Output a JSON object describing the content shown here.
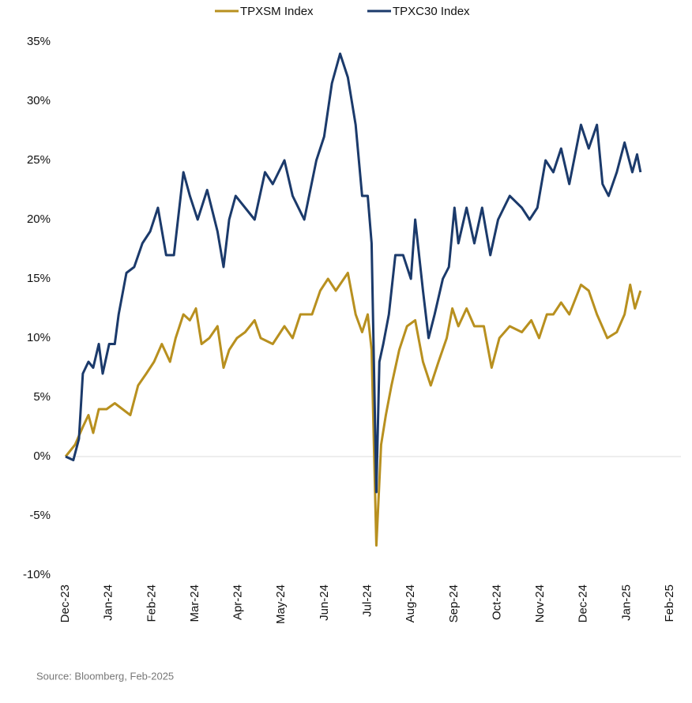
{
  "chart_data": {
    "type": "line",
    "source": "Source: Bloomberg, Feb-2025",
    "xlim": [
      0,
      14
    ],
    "xticks": [
      {
        "value": 0,
        "label": "Dec-23"
      },
      {
        "value": 1,
        "label": "Jan-24"
      },
      {
        "value": 2,
        "label": "Feb-24"
      },
      {
        "value": 3,
        "label": "Mar-24"
      },
      {
        "value": 4,
        "label": "Apr-24"
      },
      {
        "value": 5,
        "label": "May-24"
      },
      {
        "value": 6,
        "label": "Jun-24"
      },
      {
        "value": 7,
        "label": "Jul-24"
      },
      {
        "value": 8,
        "label": "Aug-24"
      },
      {
        "value": 9,
        "label": "Sep-24"
      },
      {
        "value": 10,
        "label": "Oct-24"
      },
      {
        "value": 11,
        "label": "Nov-24"
      },
      {
        "value": 12,
        "label": "Dec-24"
      },
      {
        "value": 13,
        "label": "Jan-25"
      },
      {
        "value": 14,
        "label": "Feb-25"
      }
    ],
    "ylim": [
      -10,
      35
    ],
    "yticks": [
      {
        "value": 35,
        "label": "35%"
      },
      {
        "value": 30,
        "label": "30%"
      },
      {
        "value": 25,
        "label": "25%"
      },
      {
        "value": 20,
        "label": "20%"
      },
      {
        "value": 15,
        "label": "15%"
      },
      {
        "value": 10,
        "label": "10%"
      },
      {
        "value": 5,
        "label": "5%"
      },
      {
        "value": 0,
        "label": "0%"
      },
      {
        "value": -5,
        "label": "-5%"
      },
      {
        "value": -10,
        "label": "-10%"
      }
    ],
    "legend": "top",
    "series": [
      {
        "name": "TPXSM Index",
        "color": "#b8901f",
        "x": [
          0,
          0.22,
          0.4,
          0.53,
          0.64,
          0.77,
          0.95,
          1.14,
          1.32,
          1.5,
          1.68,
          1.87,
          2.05,
          2.23,
          2.42,
          2.55,
          2.73,
          2.88,
          3.02,
          3.15,
          3.33,
          3.52,
          3.66,
          3.79,
          3.97,
          4.16,
          4.38,
          4.52,
          4.8,
          5.07,
          5.26,
          5.44,
          5.71,
          5.9,
          6.08,
          6.26,
          6.54,
          6.72,
          6.87,
          7.0,
          7.09,
          7.2,
          7.31,
          7.42,
          7.55,
          7.73,
          7.91,
          8.1,
          8.28,
          8.46,
          8.64,
          8.83,
          8.96,
          9.1,
          9.29,
          9.47,
          9.69,
          9.87,
          10.05,
          10.29,
          10.57,
          10.79,
          10.97,
          11.15,
          11.3,
          11.48,
          11.67,
          11.94,
          12.12,
          12.31,
          12.55,
          12.77,
          12.95,
          13.08,
          13.19,
          13.32
        ],
        "values": [
          0,
          1,
          2.5,
          3.5,
          2,
          4,
          4,
          4.5,
          4,
          3.5,
          6,
          7,
          8,
          9.5,
          8,
          10,
          12,
          11.5,
          12.5,
          9.5,
          10,
          11,
          7.5,
          9,
          10,
          10.5,
          11.5,
          10,
          9.5,
          11,
          10,
          12,
          12,
          14,
          15,
          14,
          15.5,
          12,
          10.5,
          12,
          9,
          -7.5,
          1,
          3.5,
          6,
          9,
          11,
          11.5,
          8,
          6,
          8,
          10,
          12.5,
          11,
          12.5,
          11,
          11,
          7.5,
          10,
          11,
          10.5,
          11.5,
          10,
          12,
          12,
          13,
          12,
          14.5,
          14,
          12,
          10,
          10.5,
          12,
          14.5,
          12.5,
          14
        ]
      },
      {
        "name": "TPXC30 Index",
        "color": "#1b3a6b",
        "x": [
          0,
          0.18,
          0.31,
          0.4,
          0.53,
          0.64,
          0.77,
          0.86,
          1.01,
          1.14,
          1.23,
          1.41,
          1.59,
          1.78,
          1.96,
          2.14,
          2.33,
          2.51,
          2.73,
          2.88,
          3.06,
          3.28,
          3.52,
          3.66,
          3.79,
          3.94,
          4.16,
          4.38,
          4.62,
          4.8,
          5.07,
          5.26,
          5.53,
          5.81,
          5.99,
          6.17,
          6.36,
          6.54,
          6.72,
          6.87,
          7.0,
          7.09,
          7.2,
          7.27,
          7.36,
          7.49,
          7.64,
          7.82,
          8.0,
          8.1,
          8.28,
          8.41,
          8.55,
          8.74,
          8.88,
          9.01,
          9.1,
          9.29,
          9.47,
          9.65,
          9.84,
          10.02,
          10.29,
          10.57,
          10.75,
          10.93,
          11.12,
          11.3,
          11.48,
          11.67,
          11.94,
          12.12,
          12.31,
          12.44,
          12.58,
          12.77,
          12.95,
          13.13,
          13.24,
          13.32
        ],
        "values": [
          0,
          -0.3,
          1.5,
          7,
          8,
          7.5,
          9.5,
          7,
          9.5,
          9.5,
          12,
          15.5,
          16,
          18,
          19,
          21,
          17,
          17,
          24,
          22,
          20,
          22.5,
          19,
          16,
          20,
          22,
          21,
          20,
          24,
          23,
          25,
          22,
          20,
          25,
          27,
          31.5,
          34,
          32,
          28,
          22,
          22,
          18,
          -3,
          8,
          9.5,
          12,
          17,
          17,
          15,
          20,
          14,
          10,
          12,
          15,
          16,
          21,
          18,
          21,
          18,
          21,
          17,
          20,
          22,
          21,
          20,
          21,
          25,
          24,
          26,
          23,
          28,
          26,
          28,
          23,
          22,
          24,
          26.5,
          24,
          25.5,
          24
        ]
      }
    ]
  }
}
